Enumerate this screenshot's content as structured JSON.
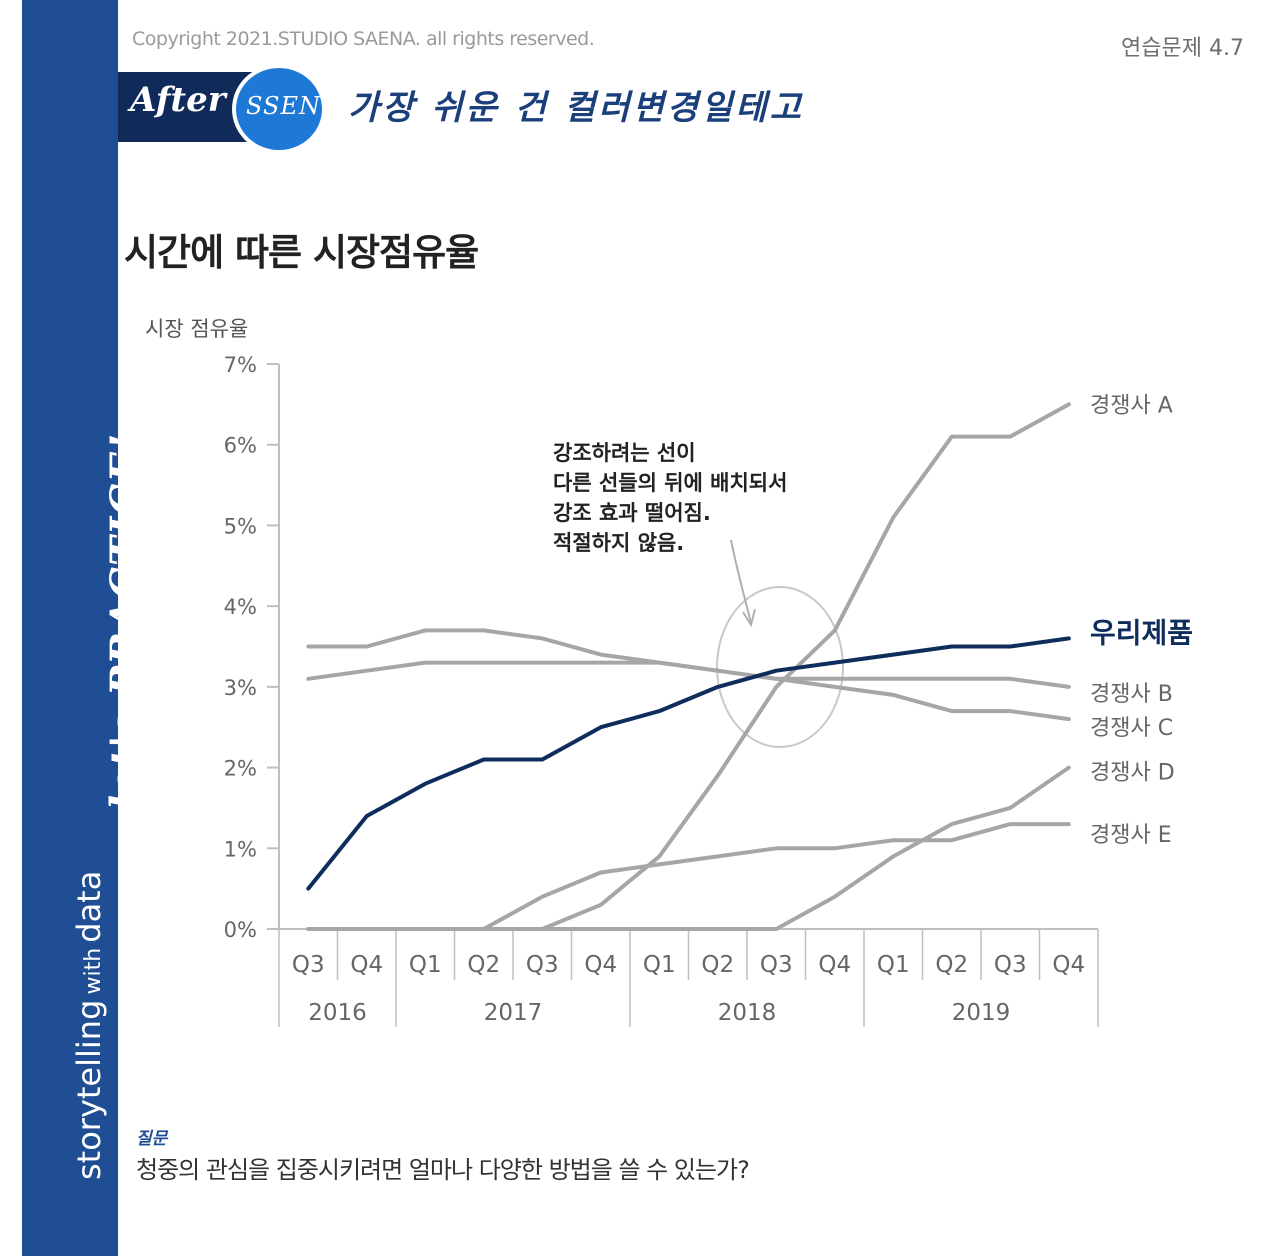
{
  "header": {
    "copyright": "Copyright 2021.STUDIO SAENA. all rights reserved.",
    "exercise": "연습문제 4.7",
    "badge_after": "After",
    "badge_ssen": "SSEN",
    "subtitle": "가장 쉬운 건 컬러변경일테고"
  },
  "sidebar": {
    "text_a": "storytelling",
    "text_with": "with",
    "text_b": "data",
    "practice": "let's PRACTICE!"
  },
  "colors": {
    "brand_blue": "#1f4e94",
    "navy": "#102b5a",
    "highlight": "#0f2d5c",
    "gray_line": "#a6a6a6",
    "axis": "#bfbfbf"
  },
  "chart_data": {
    "type": "line",
    "title": "시간에 따른 시장점유율",
    "ylabel": "시장 점유율",
    "xlabel": "",
    "ylim": [
      0,
      7
    ],
    "yticks": [
      "0%",
      "1%",
      "2%",
      "3%",
      "4%",
      "5%",
      "6%",
      "7%"
    ],
    "categories": [
      "Q3",
      "Q4",
      "Q1",
      "Q2",
      "Q3",
      "Q4",
      "Q1",
      "Q2",
      "Q3",
      "Q4",
      "Q1",
      "Q2",
      "Q3",
      "Q4"
    ],
    "years": [
      {
        "label": "2016",
        "start": 0,
        "end": 1
      },
      {
        "label": "2017",
        "start": 2,
        "end": 5
      },
      {
        "label": "2018",
        "start": 6,
        "end": 9
      },
      {
        "label": "2019",
        "start": 10,
        "end": 13
      }
    ],
    "series": [
      {
        "name": "경쟁사 A",
        "highlight": false,
        "values": [
          0,
          0,
          0,
          0,
          0,
          0.3,
          0.9,
          1.9,
          3.0,
          3.7,
          5.1,
          6.1,
          6.1,
          6.5
        ]
      },
      {
        "name": "경쟁사 B",
        "highlight": false,
        "values": [
          3.1,
          3.2,
          3.3,
          3.3,
          3.3,
          3.3,
          3.3,
          3.2,
          3.1,
          3.1,
          3.1,
          3.1,
          3.1,
          3.0
        ]
      },
      {
        "name": "경쟁사 C",
        "highlight": false,
        "values": [
          3.5,
          3.5,
          3.7,
          3.7,
          3.6,
          3.4,
          3.3,
          3.2,
          3.1,
          3.0,
          2.9,
          2.7,
          2.7,
          2.6
        ]
      },
      {
        "name": "경쟁사 D",
        "highlight": false,
        "values": [
          0,
          0,
          0,
          0,
          0,
          0,
          0,
          0,
          0,
          0.4,
          0.9,
          1.3,
          1.5,
          2.0
        ]
      },
      {
        "name": "경쟁사 E",
        "highlight": false,
        "values": [
          0,
          0,
          0,
          0,
          0.4,
          0.7,
          0.8,
          0.9,
          1.0,
          1.0,
          1.1,
          1.1,
          1.3,
          1.3
        ]
      },
      {
        "name": "우리제품",
        "highlight": true,
        "values": [
          0.5,
          1.4,
          1.8,
          2.1,
          2.1,
          2.5,
          2.7,
          3.0,
          3.2,
          3.3,
          3.4,
          3.5,
          3.5,
          3.6
        ]
      }
    ],
    "annotation": {
      "lines": [
        "강조하려는 선이",
        "다른 선들의 뒤에 배치되서",
        "강조 효과 떨어짐.",
        "적절하지 않음."
      ]
    }
  },
  "question": {
    "label": "질문",
    "text": "청중의 관심을 집중시키려면 얼마나 다양한 방법을 쓸 수 있는가?"
  }
}
